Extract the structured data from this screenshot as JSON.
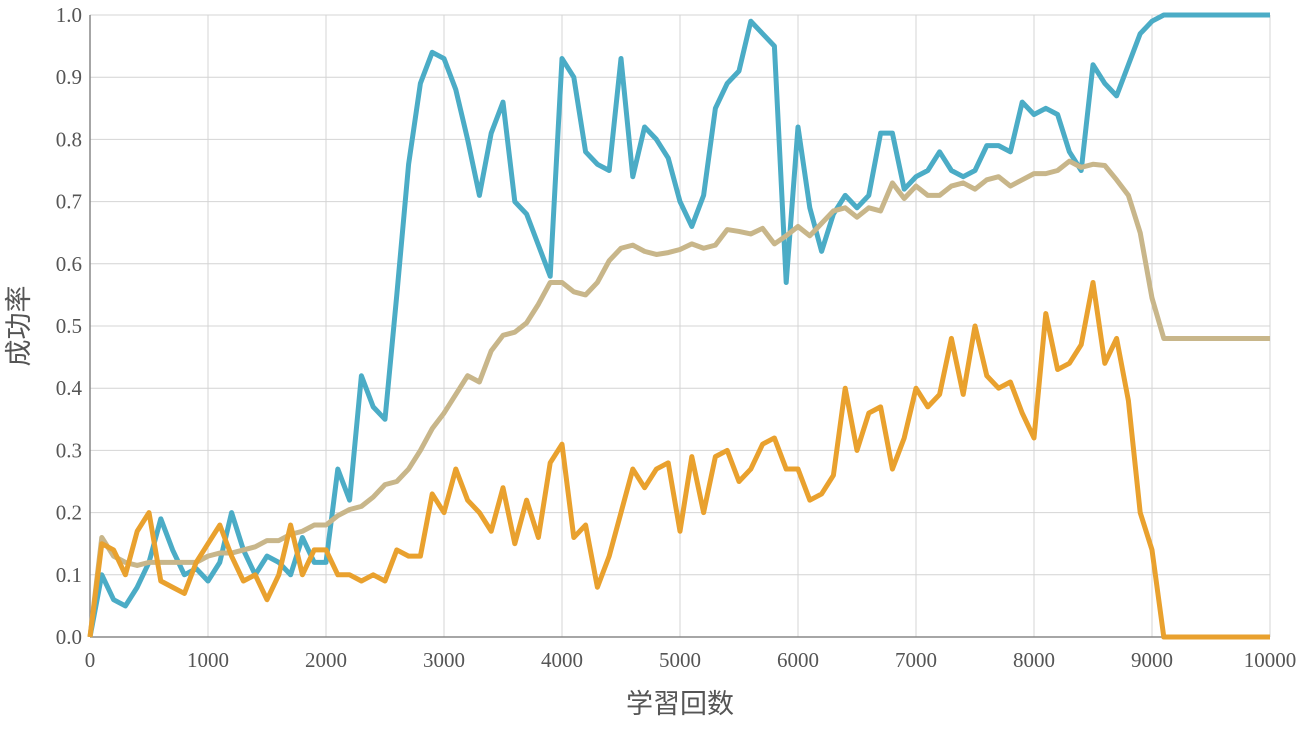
{
  "chart_data": {
    "type": "line",
    "xlabel": "学習回数",
    "ylabel": "成功率",
    "x": [
      0,
      100,
      200,
      300,
      400,
      500,
      600,
      700,
      800,
      900,
      1000,
      1100,
      1200,
      1300,
      1400,
      1500,
      1600,
      1700,
      1800,
      1900,
      2000,
      2100,
      2200,
      2300,
      2400,
      2500,
      2600,
      2700,
      2800,
      2900,
      3000,
      3100,
      3200,
      3300,
      3400,
      3500,
      3600,
      3700,
      3800,
      3900,
      4000,
      4100,
      4200,
      4300,
      4400,
      4500,
      4600,
      4700,
      4800,
      4900,
      5000,
      5100,
      5200,
      5300,
      5400,
      5500,
      5600,
      5700,
      5800,
      5900,
      6000,
      6100,
      6200,
      6300,
      6400,
      6500,
      6600,
      6700,
      6800,
      6900,
      7000,
      7100,
      7200,
      7300,
      7400,
      7500,
      7600,
      7700,
      7800,
      7900,
      8000,
      8100,
      8200,
      8300,
      8400,
      8500,
      8600,
      8700,
      8800,
      8900,
      9000,
      9100,
      9200,
      9300,
      9400,
      9500,
      9600,
      9700,
      9800,
      9900,
      10000
    ],
    "series": [
      {
        "color": "#4bacc6",
        "values": [
          0,
          0.1,
          0.06,
          0.05,
          0.08,
          0.12,
          0.19,
          0.14,
          0.1,
          0.11,
          0.09,
          0.12,
          0.2,
          0.14,
          0.1,
          0.13,
          0.12,
          0.1,
          0.16,
          0.12,
          0.12,
          0.27,
          0.22,
          0.42,
          0.37,
          0.35,
          0.55,
          0.76,
          0.89,
          0.94,
          0.93,
          0.88,
          0.8,
          0.71,
          0.81,
          0.86,
          0.7,
          0.68,
          0.63,
          0.58,
          0.93,
          0.9,
          0.78,
          0.76,
          0.75,
          0.93,
          0.74,
          0.82,
          0.8,
          0.77,
          0.7,
          0.66,
          0.71,
          0.85,
          0.89,
          0.91,
          0.99,
          0.97,
          0.95,
          0.57,
          0.82,
          0.69,
          0.62,
          0.68,
          0.71,
          0.69,
          0.71,
          0.81,
          0.81,
          0.72,
          0.74,
          0.75,
          0.78,
          0.75,
          0.74,
          0.75,
          0.79,
          0.79,
          0.78,
          0.86,
          0.84,
          0.85,
          0.84,
          0.78,
          0.75,
          0.92,
          0.89,
          0.87,
          0.92,
          0.97,
          0.99,
          1,
          1,
          1,
          1,
          1,
          1,
          1,
          1,
          1,
          1
        ]
      },
      {
        "color": "#c8b68a",
        "values": [
          0,
          0.16,
          0.13,
          0.12,
          0.115,
          0.12,
          0.12,
          0.12,
          0.12,
          0.12,
          0.13,
          0.135,
          0.135,
          0.14,
          0.145,
          0.155,
          0.155,
          0.165,
          0.17,
          0.18,
          0.18,
          0.195,
          0.205,
          0.21,
          0.225,
          0.245,
          0.25,
          0.27,
          0.3,
          0.335,
          0.36,
          0.39,
          0.42,
          0.41,
          0.46,
          0.485,
          0.49,
          0.505,
          0.535,
          0.57,
          0.57,
          0.555,
          0.55,
          0.57,
          0.605,
          0.625,
          0.63,
          0.62,
          0.615,
          0.618,
          0.623,
          0.632,
          0.625,
          0.63,
          0.655,
          0.652,
          0.648,
          0.657,
          0.632,
          0.645,
          0.66,
          0.645,
          0.665,
          0.685,
          0.69,
          0.675,
          0.69,
          0.685,
          0.73,
          0.705,
          0.725,
          0.71,
          0.71,
          0.725,
          0.73,
          0.72,
          0.735,
          0.74,
          0.725,
          0.735,
          0.745,
          0.745,
          0.75,
          0.765,
          0.755,
          0.76,
          0.758,
          0.735,
          0.71,
          0.65,
          0.545,
          0.48,
          0.48,
          0.48,
          0.48,
          0.48,
          0.48,
          0.48,
          0.48,
          0.48,
          0.48
        ]
      },
      {
        "color": "#e9a12e",
        "values": [
          0,
          0.15,
          0.14,
          0.1,
          0.17,
          0.2,
          0.09,
          0.08,
          0.07,
          0.12,
          0.15,
          0.18,
          0.13,
          0.09,
          0.1,
          0.06,
          0.1,
          0.18,
          0.1,
          0.14,
          0.14,
          0.1,
          0.1,
          0.09,
          0.1,
          0.09,
          0.14,
          0.13,
          0.13,
          0.23,
          0.2,
          0.27,
          0.22,
          0.2,
          0.17,
          0.24,
          0.15,
          0.22,
          0.16,
          0.28,
          0.31,
          0.16,
          0.18,
          0.08,
          0.13,
          0.2,
          0.27,
          0.24,
          0.27,
          0.28,
          0.17,
          0.29,
          0.2,
          0.29,
          0.3,
          0.25,
          0.27,
          0.31,
          0.32,
          0.27,
          0.27,
          0.22,
          0.23,
          0.26,
          0.4,
          0.3,
          0.36,
          0.37,
          0.27,
          0.32,
          0.4,
          0.37,
          0.39,
          0.48,
          0.39,
          0.5,
          0.42,
          0.4,
          0.41,
          0.36,
          0.32,
          0.52,
          0.43,
          0.44,
          0.47,
          0.57,
          0.44,
          0.48,
          0.38,
          0.2,
          0.14,
          0,
          0,
          0,
          0,
          0,
          0,
          0,
          0,
          0,
          0
        ]
      }
    ],
    "xlim": [
      0,
      10000
    ],
    "xticks": [
      0,
      1000,
      2000,
      3000,
      4000,
      5000,
      6000,
      7000,
      8000,
      9000,
      10000
    ],
    "ylim": [
      0,
      1
    ],
    "yticks": [
      {
        "value": 0,
        "label": "0.0"
      },
      0.1,
      0.2,
      0.3,
      0.4,
      0.5,
      0.6,
      0.7,
      0.8,
      0.9,
      {
        "value": 1,
        "label": "1.0"
      }
    ],
    "grid": true
  }
}
